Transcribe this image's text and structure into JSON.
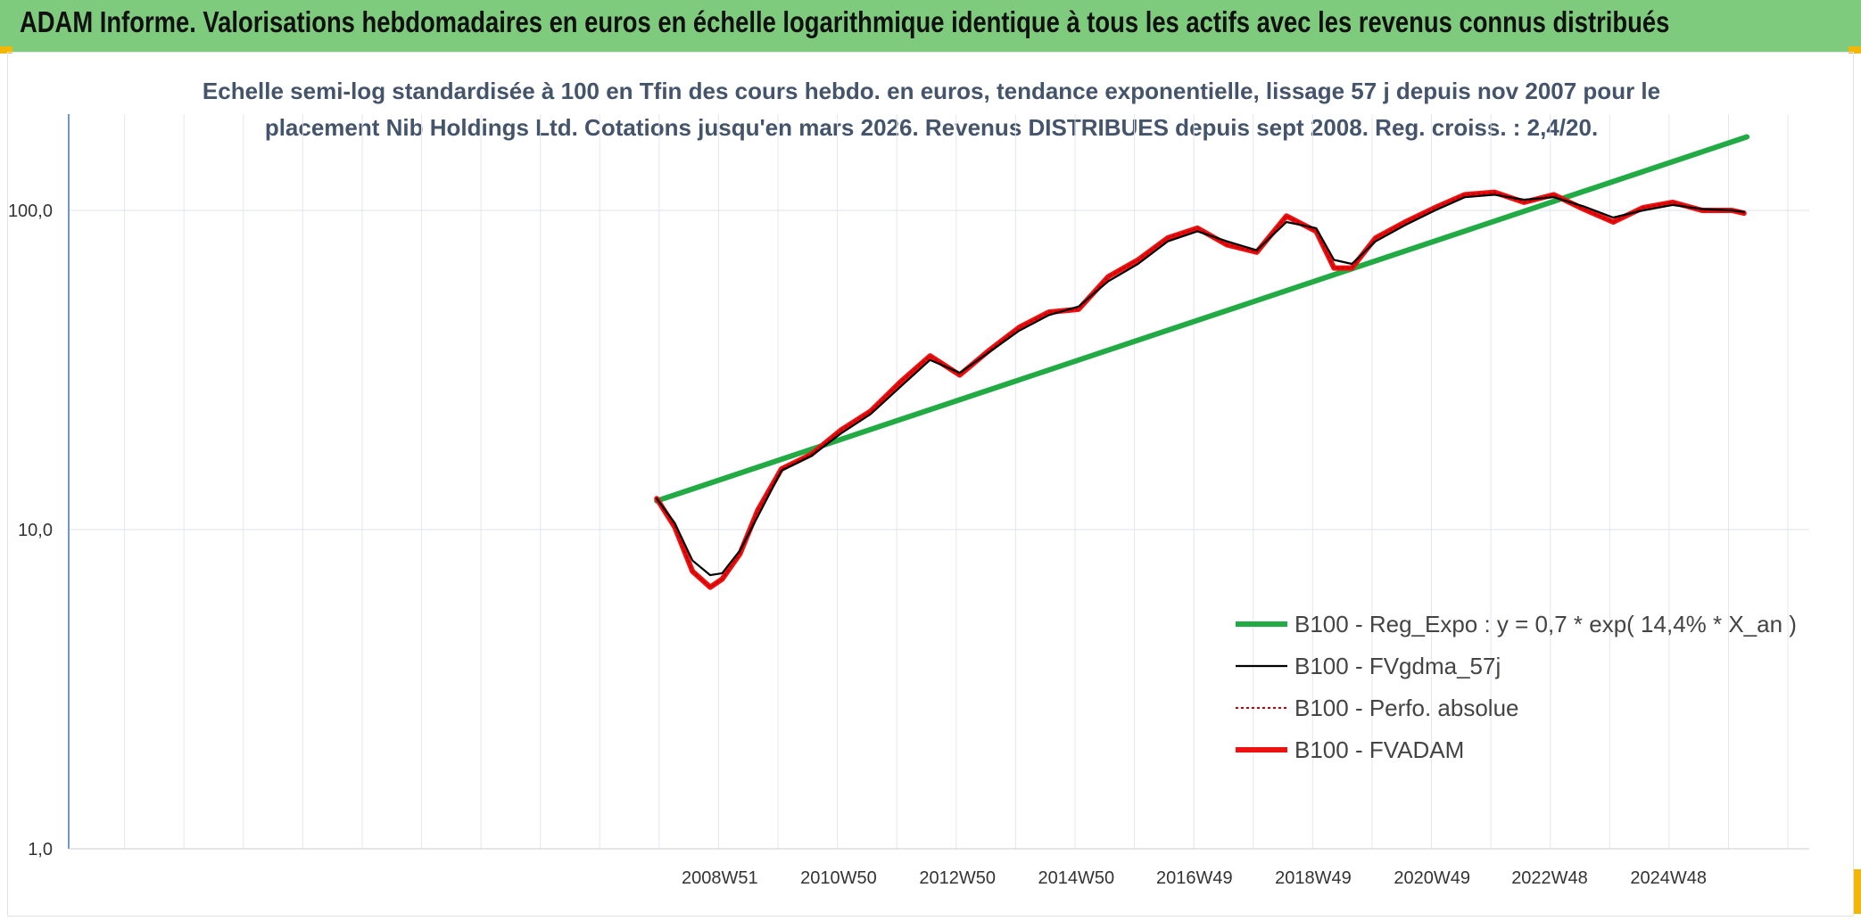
{
  "header": {
    "title": "ADAM Informe. Valorisations hebdomadaires en euros en échelle logarithmique identique à tous les actifs avec les revenus connus distribués"
  },
  "chart_data": {
    "type": "line",
    "title_lines": [
      "Echelle semi-log standardisée à 100 en Tfin des cours hebdo. en euros, tendance exponentielle, lissage 57 j depuis nov 2007 pour le",
      "placement Nib Holdings Ltd. Cotations jusqu'en mars 2026. Revenus DISTRIBUES depuis sept 2008. Reg. croiss. : 2,4/20."
    ],
    "y_scale": "log",
    "ylim": [
      1,
      200
    ],
    "y_ticks": [
      "1,0",
      "10,0",
      "100,0"
    ],
    "x_tick_labels": [
      "2008W51",
      "2010W50",
      "2012W50",
      "2014W50",
      "2016W49",
      "2018W49",
      "2020W49",
      "2022W48",
      "2024W48"
    ],
    "x_tick_years": [
      2008.96,
      2010.96,
      2012.96,
      2014.96,
      2016.95,
      2018.95,
      2020.95,
      2022.93,
      2024.93
    ],
    "xlim": [
      1998.0,
      2027.3
    ],
    "grid": true,
    "legend_position": "bottom-right",
    "series": [
      {
        "name": "B100 - Reg_Expo : y = 0,7 * exp( 14,4% *  X_an )",
        "color": "#22aa44",
        "style": "thick",
        "x": [
          2007.9,
          2026.25
        ],
        "y": [
          12.3,
          170
        ]
      },
      {
        "name": "B100 - FVgdma_57j",
        "color": "#000000",
        "style": "thin",
        "x": [
          2007.9,
          2008.2,
          2008.5,
          2008.8,
          2009.0,
          2009.3,
          2009.6,
          2010.0,
          2010.5,
          2011.0,
          2011.5,
          2012.0,
          2012.5,
          2013.0,
          2013.5,
          2014.0,
          2014.5,
          2015.0,
          2015.5,
          2016.0,
          2016.5,
          2017.0,
          2017.5,
          2018.0,
          2018.5,
          2019.0,
          2019.3,
          2019.6,
          2020.0,
          2020.5,
          2021.0,
          2021.5,
          2022.0,
          2022.5,
          2023.0,
          2023.5,
          2024.0,
          2024.5,
          2025.0,
          2025.5,
          2026.0,
          2026.2
        ],
        "y": [
          12.5,
          10.5,
          8.0,
          7.2,
          7.3,
          8.6,
          11.0,
          15.3,
          17.0,
          20.0,
          23.0,
          28.0,
          34.0,
          31.0,
          36.0,
          42.0,
          47.0,
          50.0,
          60.0,
          68.0,
          80.0,
          86.0,
          80.0,
          75.0,
          92.0,
          88.0,
          70.0,
          68.0,
          80.0,
          90.0,
          100.0,
          110.0,
          112.0,
          108.0,
          110.0,
          103.0,
          95.0,
          100.0,
          104.0,
          101.0,
          100.0,
          99.0
        ]
      },
      {
        "name": "B100 - Perfo. absolue",
        "color": "#cc0000",
        "style": "dotted",
        "x": [
          2007.9,
          2008.2,
          2008.5,
          2008.8,
          2009.0,
          2009.3,
          2009.6,
          2010.0,
          2010.5,
          2011.0,
          2011.5,
          2012.0,
          2012.5,
          2013.0,
          2013.5,
          2014.0,
          2014.5,
          2015.0,
          2015.5,
          2016.0,
          2016.5,
          2017.0,
          2017.5,
          2018.0,
          2018.5,
          2019.0,
          2019.3,
          2019.6,
          2020.0,
          2020.5,
          2021.0,
          2021.5,
          2022.0,
          2022.5,
          2023.0,
          2023.5,
          2024.0,
          2024.5,
          2025.0,
          2025.5,
          2026.0,
          2026.2
        ],
        "y": [
          12.5,
          10.2,
          7.4,
          6.6,
          7.0,
          8.4,
          11.5,
          15.5,
          17.2,
          20.5,
          23.5,
          29.0,
          35.0,
          30.5,
          36.5,
          43.0,
          48.0,
          49.0,
          62.0,
          70.0,
          82.0,
          88.0,
          78.0,
          74.0,
          96.0,
          86.0,
          66.0,
          66.0,
          82.0,
          92.0,
          102.0,
          112.0,
          114.0,
          106.0,
          112.0,
          101.0,
          92.0,
          102.0,
          106.0,
          100.0,
          100.0,
          98.0
        ]
      },
      {
        "name": "B100 - FVADAM",
        "color": "#ee1111",
        "style": "thick",
        "x": [
          2007.9,
          2008.2,
          2008.5,
          2008.8,
          2009.0,
          2009.3,
          2009.6,
          2010.0,
          2010.5,
          2011.0,
          2011.5,
          2012.0,
          2012.5,
          2013.0,
          2013.5,
          2014.0,
          2014.5,
          2015.0,
          2015.5,
          2016.0,
          2016.5,
          2017.0,
          2017.5,
          2018.0,
          2018.5,
          2019.0,
          2019.3,
          2019.6,
          2020.0,
          2020.5,
          2021.0,
          2021.5,
          2022.0,
          2022.5,
          2023.0,
          2023.5,
          2024.0,
          2024.5,
          2025.0,
          2025.5,
          2026.0,
          2026.2
        ],
        "y": [
          12.5,
          10.2,
          7.4,
          6.6,
          7.0,
          8.4,
          11.5,
          15.5,
          17.2,
          20.5,
          23.5,
          29.0,
          35.0,
          30.5,
          36.5,
          43.0,
          48.0,
          49.0,
          62.0,
          70.0,
          82.0,
          88.0,
          78.0,
          74.0,
          96.0,
          86.0,
          66.0,
          66.0,
          82.0,
          92.0,
          102.0,
          112.0,
          114.0,
          106.0,
          112.0,
          101.0,
          92.0,
          102.0,
          106.0,
          100.0,
          100.0,
          98.0
        ]
      }
    ]
  }
}
